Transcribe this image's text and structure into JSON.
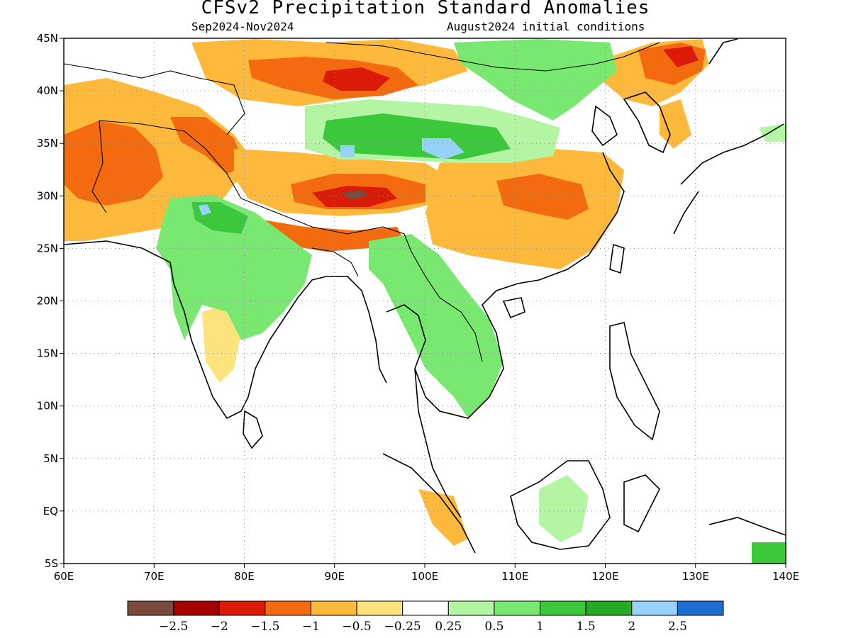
{
  "header": {
    "title": "CFSv2 Precipitation Standard Anomalies",
    "period": "Sep2024-Nov2024",
    "init": "August2024 initial conditions"
  },
  "map": {
    "lon_range": [
      60,
      140
    ],
    "lat_range": [
      -5,
      45
    ],
    "x_ticks": [
      "60E",
      "70E",
      "80E",
      "90E",
      "100E",
      "110E",
      "120E",
      "130E",
      "140E"
    ],
    "y_ticks": [
      "45N",
      "40N",
      "35N",
      "30N",
      "25N",
      "20N",
      "15N",
      "10N",
      "5N",
      "EQ",
      "5S"
    ],
    "gridlines": true
  },
  "colorbar": {
    "colors": [
      "#7a4a3e",
      "#a50000",
      "#dc1a08",
      "#f46a0f",
      "#fcb93c",
      "#fde37e",
      "#ffffff",
      "#b4f5a4",
      "#78e870",
      "#3cc83c",
      "#22aa22",
      "#96d2fa",
      "#1e6ed2"
    ],
    "labels": [
      "-2.5",
      "-2",
      "-1.5",
      "-1",
      "-0.5",
      "-0.25",
      "0.25",
      "0.5",
      "1",
      "1.5",
      "2",
      "2.5"
    ]
  }
}
